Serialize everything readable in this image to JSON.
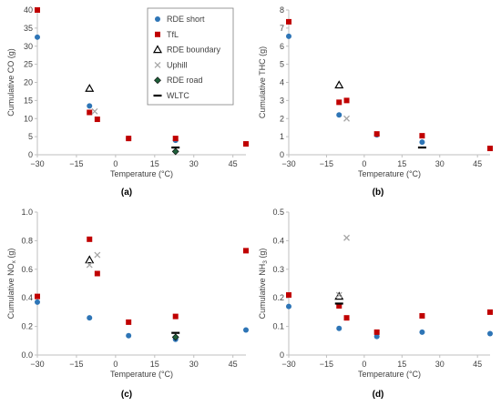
{
  "colors": {
    "rde_short": "#2e75b6",
    "tfl": "#c00000",
    "rde_boundary": "#000000",
    "uphill": "#a6a6a6",
    "rde_road": "#1f5f3a",
    "wltc": "#000000",
    "axis": "#bfbfbf",
    "text": "#404040"
  },
  "legend": {
    "placement": "inside-right-of-panel-a",
    "entries": [
      {
        "key": "rde_short",
        "label": "RDE short",
        "marker": "circle"
      },
      {
        "key": "tfl",
        "label": "TfL",
        "marker": "square"
      },
      {
        "key": "rde_boundary",
        "label": "RDE boundary",
        "marker": "triangle-open"
      },
      {
        "key": "uphill",
        "label": "Uphill",
        "marker": "x"
      },
      {
        "key": "rde_road",
        "label": "RDE road",
        "marker": "diamond"
      },
      {
        "key": "wltc",
        "label": "WLTC",
        "marker": "dash"
      }
    ]
  },
  "chart_data": [
    {
      "type": "scatter",
      "panel_label": "(a)",
      "xlabel": "Temperature (°C)",
      "ylabel": "Cumulative CO (g)",
      "xlim": [
        -30,
        50
      ],
      "ylim": [
        0,
        40
      ],
      "xticks": [
        -30,
        -15,
        0,
        15,
        30,
        45
      ],
      "yticks": [
        0,
        5,
        10,
        15,
        20,
        25,
        30,
        35,
        40
      ],
      "xtick_labels": [
        "−30",
        "−15",
        "0",
        "15",
        "30",
        "45"
      ],
      "ytick_labels": [
        "0",
        "5",
        "10",
        "15",
        "20",
        "25",
        "30",
        "35",
        "40"
      ],
      "series": [
        {
          "key": "rde_short",
          "name": "RDE short",
          "points": [
            [
              -30,
              32.5
            ],
            [
              -10,
              13.5
            ],
            [
              5,
              4.5
            ],
            [
              23,
              4.0
            ],
            [
              50,
              3.0
            ]
          ]
        },
        {
          "key": "tfl",
          "name": "TfL",
          "points": [
            [
              -30,
              40.0
            ],
            [
              -10,
              11.7
            ],
            [
              -7,
              9.8
            ],
            [
              5,
              4.5
            ],
            [
              23,
              4.5
            ],
            [
              50,
              3.0
            ]
          ]
        },
        {
          "key": "rde_boundary",
          "name": "RDE boundary",
          "points": [
            [
              -10,
              18.3
            ]
          ]
        },
        {
          "key": "uphill",
          "name": "Uphill",
          "points": [
            [
              -8,
              12.0
            ]
          ]
        },
        {
          "key": "rde_road",
          "name": "RDE road",
          "points": [
            [
              23,
              0.9
            ]
          ]
        },
        {
          "key": "wltc",
          "name": "WLTC",
          "points": [
            [
              23,
              2.0
            ]
          ]
        }
      ]
    },
    {
      "type": "scatter",
      "panel_label": "(b)",
      "xlabel": "Temperature (°C)",
      "ylabel": "Cumulative THC (g)",
      "xlim": [
        -30,
        50
      ],
      "ylim": [
        0,
        8
      ],
      "xticks": [
        -30,
        -15,
        0,
        15,
        30,
        45
      ],
      "yticks": [
        0,
        1,
        2,
        3,
        4,
        5,
        6,
        7,
        8
      ],
      "xtick_labels": [
        "−30",
        "−15",
        "0",
        "15",
        "30",
        "45"
      ],
      "ytick_labels": [
        "0",
        "1",
        "2",
        "3",
        "4",
        "5",
        "6",
        "7",
        "8"
      ],
      "series": [
        {
          "key": "rde_short",
          "name": "RDE short",
          "points": [
            [
              -30,
              6.55
            ],
            [
              -10,
              2.2
            ],
            [
              5,
              1.1
            ],
            [
              23,
              0.7
            ],
            [
              50,
              0.35
            ]
          ]
        },
        {
          "key": "tfl",
          "name": "TfL",
          "points": [
            [
              -30,
              7.35
            ],
            [
              -10,
              2.9
            ],
            [
              -7,
              3.0
            ],
            [
              5,
              1.15
            ],
            [
              23,
              1.05
            ],
            [
              50,
              0.35
            ]
          ]
        },
        {
          "key": "rde_boundary",
          "name": "RDE boundary",
          "points": [
            [
              -10,
              3.85
            ]
          ]
        },
        {
          "key": "uphill",
          "name": "Uphill",
          "points": [
            [
              -7,
              2.0
            ]
          ]
        },
        {
          "key": "wltc",
          "name": "WLTC",
          "points": [
            [
              23,
              0.4
            ]
          ]
        }
      ]
    },
    {
      "type": "scatter",
      "panel_label": "(c)",
      "xlabel": "Temperature (°C)",
      "ylabel": "Cumulative NO",
      "ylabel_sub": "x",
      "ylabel_unit": " (g)",
      "xlim": [
        -30,
        50
      ],
      "ylim": [
        0,
        1.0
      ],
      "xticks": [
        -30,
        -15,
        0,
        15,
        30,
        45
      ],
      "yticks": [
        0,
        0.2,
        0.4,
        0.6,
        0.8,
        1.0
      ],
      "xtick_labels": [
        "−30",
        "−15",
        "0",
        "15",
        "30",
        "45"
      ],
      "ytick_labels": [
        "0.0",
        "0.2",
        "0.4",
        "0.6",
        "0.8",
        "1.0"
      ],
      "series": [
        {
          "key": "rde_short",
          "name": "RDE short",
          "points": [
            [
              -30,
              0.37
            ],
            [
              -10,
              0.26
            ],
            [
              5,
              0.135
            ],
            [
              23,
              0.11
            ],
            [
              50,
              0.175
            ]
          ]
        },
        {
          "key": "tfl",
          "name": "TfL",
          "points": [
            [
              -30,
              0.41
            ],
            [
              -10,
              0.81
            ],
            [
              -7,
              0.57
            ],
            [
              5,
              0.23
            ],
            [
              23,
              0.27
            ],
            [
              50,
              0.73
            ]
          ]
        },
        {
          "key": "rde_boundary",
          "name": "RDE boundary",
          "points": [
            [
              -10,
              0.665
            ]
          ]
        },
        {
          "key": "uphill",
          "name": "Uphill",
          "points": [
            [
              -10,
              0.63
            ],
            [
              -7,
              0.7
            ]
          ]
        },
        {
          "key": "rde_road",
          "name": "RDE road",
          "points": [
            [
              23,
              0.125
            ]
          ]
        },
        {
          "key": "wltc",
          "name": "WLTC",
          "points": [
            [
              23,
              0.155
            ]
          ]
        }
      ]
    },
    {
      "type": "scatter",
      "panel_label": "(d)",
      "xlabel": "Temperature (°C)",
      "ylabel": "Cumulative NH",
      "ylabel_sub": "3",
      "ylabel_unit": " (g)",
      "xlim": [
        -30,
        50
      ],
      "ylim": [
        0,
        0.5
      ],
      "xticks": [
        -30,
        -15,
        0,
        15,
        30,
        45
      ],
      "yticks": [
        0,
        0.1,
        0.2,
        0.3,
        0.4,
        0.5
      ],
      "xtick_labels": [
        "−30",
        "−15",
        "0",
        "15",
        "30",
        "45"
      ],
      "ytick_labels": [
        "0",
        "0.1",
        "0.2",
        "0.3",
        "0.4",
        "0.5"
      ],
      "series": [
        {
          "key": "rde_short",
          "name": "RDE short",
          "points": [
            [
              -30,
              0.17
            ],
            [
              -10,
              0.093
            ],
            [
              5,
              0.065
            ],
            [
              23,
              0.08
            ],
            [
              50,
              0.075
            ]
          ]
        },
        {
          "key": "tfl",
          "name": "TfL",
          "points": [
            [
              -30,
              0.21
            ],
            [
              -10,
              0.172
            ],
            [
              -7,
              0.13
            ],
            [
              5,
              0.08
            ],
            [
              23,
              0.137
            ],
            [
              50,
              0.15
            ]
          ]
        },
        {
          "key": "rde_boundary",
          "name": "RDE boundary",
          "points": [
            [
              -10,
              0.205
            ]
          ]
        },
        {
          "key": "uphill",
          "name": "Uphill",
          "points": [
            [
              -10,
              0.21
            ],
            [
              -7,
              0.41
            ]
          ]
        },
        {
          "key": "wltc",
          "name": "WLTC",
          "points": [
            [
              -10,
              0.18
            ]
          ]
        }
      ]
    }
  ]
}
